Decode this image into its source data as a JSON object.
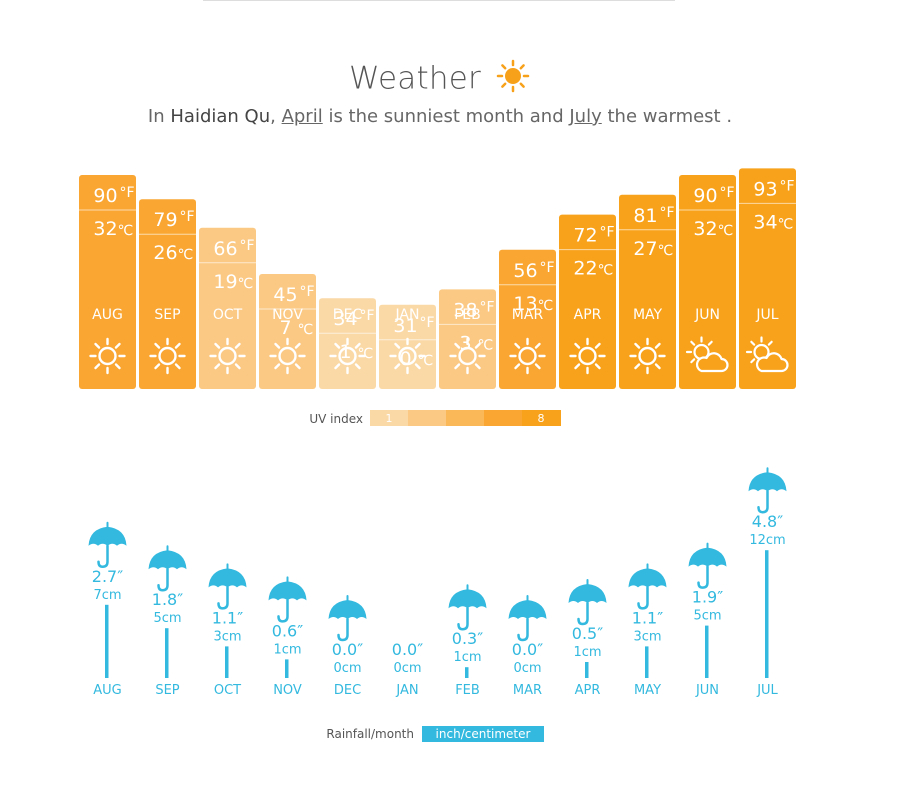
{
  "title": "Weather",
  "subtitle": {
    "prefix": "In ",
    "place": "Haidian Qu",
    "comma": ", ",
    "sunniest": "April",
    "mid": " is the sunniest month and ",
    "warmest": "July",
    "suffix": " the warmest ."
  },
  "colors": {
    "uv1": "#fbd9a6",
    "uv2": "#fbc984",
    "uv3": "#fbb858",
    "uv4": "#f9a632",
    "uv5": "#f8a21b",
    "rain": "#33b9df"
  },
  "chart_data": [
    {
      "type": "bar",
      "categories": [
        "AUG",
        "SEP",
        "OCT",
        "NOV",
        "DEC",
        "JAN",
        "FEB",
        "MAR",
        "APR",
        "MAY",
        "JUN",
        "JUL"
      ],
      "series": [
        {
          "name": "°F",
          "values": [
            90,
            79,
            66,
            45,
            34,
            31,
            38,
            56,
            72,
            81,
            90,
            93
          ]
        },
        {
          "name": "°C",
          "values": [
            32,
            26,
            19,
            7,
            1,
            0,
            3,
            13,
            22,
            27,
            32,
            34
          ]
        }
      ],
      "uv_level": [
        4,
        4,
        2,
        2,
        1,
        1,
        2,
        4,
        5,
        5,
        5,
        5
      ],
      "icons": [
        "sun-icon",
        "sun-icon",
        "sun-icon",
        "sun-icon",
        "sun-icon",
        "sun-icon",
        "sun-icon",
        "sun-icon",
        "sun-icon",
        "sun-icon",
        "partly-cloudy-icon",
        "partly-cloudy-icon"
      ],
      "unit_f": "°F",
      "unit_c": "℃",
      "legend": {
        "label": "UV index",
        "low": "1",
        "high": "8"
      }
    },
    {
      "type": "bar",
      "categories": [
        "AUG",
        "SEP",
        "OCT",
        "NOV",
        "DEC",
        "JAN",
        "FEB",
        "MAR",
        "APR",
        "MAY",
        "JUN",
        "JUL"
      ],
      "series": [
        {
          "name": "inch",
          "values": [
            2.7,
            1.8,
            1.1,
            0.6,
            0.0,
            0.0,
            0.3,
            0.0,
            0.5,
            1.1,
            1.9,
            4.8
          ]
        },
        {
          "name": "cm",
          "values": [
            7,
            5,
            3,
            1,
            0,
            0,
            1,
            0,
            1,
            3,
            5,
            12
          ]
        }
      ],
      "inch_labels": [
        "2.7″",
        "1.8″",
        "1.1″",
        "0.6″",
        "0.0″",
        "0.0″",
        "0.3″",
        "0.0″",
        "0.5″",
        "1.1″",
        "1.9″",
        "4.8″"
      ],
      "cm_labels": [
        "7cm",
        "5cm",
        "3cm",
        "1cm",
        "0cm",
        "0cm",
        "1cm",
        "0cm",
        "1cm",
        "3cm",
        "5cm",
        "12cm"
      ],
      "legend": {
        "label": "Rainfall/month",
        "unit_badge": "inch/centimeter"
      }
    }
  ]
}
